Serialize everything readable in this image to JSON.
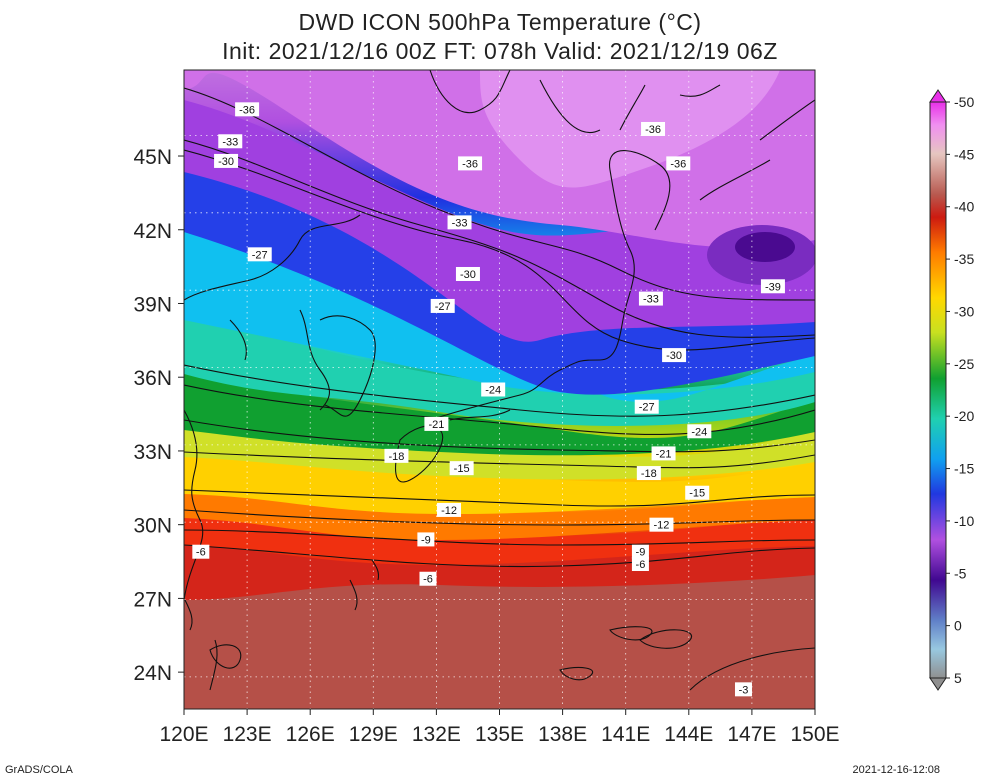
{
  "title": {
    "line1": "DWD ICON 500hPa Temperature (°C)",
    "line2": "Init: 2021/12/16 00Z  FT: 078h  Valid: 2021/12/19 06Z"
  },
  "axes": {
    "lon_range": [
      120,
      150
    ],
    "lat_range": [
      22.5,
      48.5
    ],
    "x_ticks": [
      "120E",
      "123E",
      "126E",
      "129E",
      "132E",
      "135E",
      "138E",
      "141E",
      "144E",
      "147E",
      "150E"
    ],
    "x_tick_values": [
      120,
      123,
      126,
      129,
      132,
      135,
      138,
      141,
      144,
      147,
      150
    ],
    "y_ticks": [
      "45N",
      "42N",
      "39N",
      "36N",
      "33N",
      "30N",
      "27N",
      "24N"
    ],
    "y_tick_values": [
      45,
      42,
      39,
      36,
      33,
      30,
      27,
      24
    ]
  },
  "colorbar": {
    "labels": [
      "5",
      "0",
      "-5",
      "-10",
      "-15",
      "-20",
      "-25",
      "-30",
      "-35",
      "-40",
      "-45",
      "-50"
    ],
    "label_values": [
      5,
      0,
      -5,
      -10,
      -15,
      -20,
      -25,
      -30,
      -35,
      -40,
      -45,
      -50
    ],
    "range": [
      -50,
      5
    ]
  },
  "contour_labels": [
    {
      "text": "-36",
      "lon": 123.0,
      "lat": 46.9
    },
    {
      "text": "-33",
      "lon": 122.2,
      "lat": 45.6
    },
    {
      "text": "-30",
      "lon": 122.0,
      "lat": 44.8
    },
    {
      "text": "-36",
      "lon": 133.6,
      "lat": 44.7
    },
    {
      "text": "-36",
      "lon": 142.3,
      "lat": 46.1
    },
    {
      "text": "-36",
      "lon": 143.5,
      "lat": 44.7
    },
    {
      "text": "-33",
      "lon": 133.1,
      "lat": 42.3
    },
    {
      "text": "-27",
      "lon": 123.6,
      "lat": 41.0
    },
    {
      "text": "-30",
      "lon": 133.5,
      "lat": 40.2
    },
    {
      "text": "-27",
      "lon": 132.3,
      "lat": 38.9
    },
    {
      "text": "-39",
      "lon": 148.0,
      "lat": 39.7
    },
    {
      "text": "-33",
      "lon": 142.2,
      "lat": 39.2
    },
    {
      "text": "-30",
      "lon": 143.3,
      "lat": 36.9
    },
    {
      "text": "-24",
      "lon": 134.7,
      "lat": 35.5
    },
    {
      "text": "-27",
      "lon": 142.0,
      "lat": 34.8
    },
    {
      "text": "-21",
      "lon": 132.0,
      "lat": 34.1
    },
    {
      "text": "-24",
      "lon": 144.5,
      "lat": 33.8
    },
    {
      "text": "-18",
      "lon": 130.1,
      "lat": 32.8
    },
    {
      "text": "-21",
      "lon": 142.8,
      "lat": 32.9
    },
    {
      "text": "-15",
      "lon": 133.2,
      "lat": 32.3
    },
    {
      "text": "-18",
      "lon": 142.1,
      "lat": 32.1
    },
    {
      "text": "-15",
      "lon": 144.4,
      "lat": 31.3
    },
    {
      "text": "-12",
      "lon": 132.6,
      "lat": 30.6
    },
    {
      "text": "-12",
      "lon": 142.7,
      "lat": 30.0
    },
    {
      "text": "-9",
      "lon": 131.5,
      "lat": 29.4
    },
    {
      "text": "-9",
      "lon": 141.7,
      "lat": 28.9
    },
    {
      "text": "-6",
      "lon": 120.8,
      "lat": 28.9
    },
    {
      "text": "-6",
      "lon": 141.7,
      "lat": 28.4
    },
    {
      "text": "-6",
      "lon": 131.6,
      "lat": 27.8
    },
    {
      "text": "-3",
      "lon": 146.6,
      "lat": 23.3
    }
  ],
  "footer": {
    "left": "GrADS/COLA",
    "right": "2021-12-16-12:08"
  }
}
